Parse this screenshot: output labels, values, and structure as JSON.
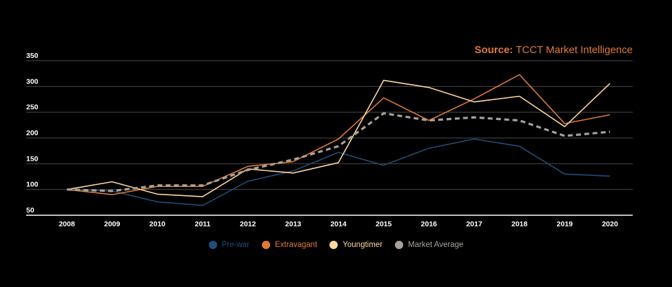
{
  "source": {
    "label": "Source:",
    "text": "TCCT Market Intelligence"
  },
  "colors": {
    "background": "#000000",
    "grid": "#4a4a4a",
    "axis": "#ffffff",
    "source": "#e07a35"
  },
  "chart_data": {
    "type": "line",
    "title": "",
    "xlabel": "",
    "ylabel": "",
    "ylim": [
      50,
      350
    ],
    "yticks": [
      50,
      100,
      150,
      200,
      250,
      300,
      350
    ],
    "grid": true,
    "legend_position": "bottom",
    "categories": [
      "2008",
      "2009",
      "2010",
      "2011",
      "2012",
      "2013",
      "2014",
      "2015",
      "2016",
      "2017",
      "2018",
      "2019",
      "2020"
    ],
    "series": [
      {
        "name": "Pre-war",
        "color": "#1f4e79",
        "dashed": false,
        "values": [
          100,
          97,
          76,
          69,
          116,
          136,
          172,
          147,
          180,
          198,
          184,
          130,
          126
        ]
      },
      {
        "name": "Extravagant",
        "color": "#e07a35",
        "dashed": false,
        "values": [
          100,
          90,
          106,
          106,
          145,
          154,
          198,
          278,
          234,
          276,
          323,
          228,
          245
        ]
      },
      {
        "name": "Youngtimer",
        "color": "#fbd99a",
        "dashed": false,
        "values": [
          100,
          115,
          91,
          86,
          140,
          132,
          152,
          312,
          298,
          270,
          281,
          222,
          306
        ]
      },
      {
        "name": "Market Average",
        "color": "#a8a29a",
        "dashed": true,
        "values": [
          100,
          97,
          108,
          108,
          138,
          158,
          184,
          248,
          234,
          240,
          234,
          204,
          212
        ]
      }
    ]
  }
}
